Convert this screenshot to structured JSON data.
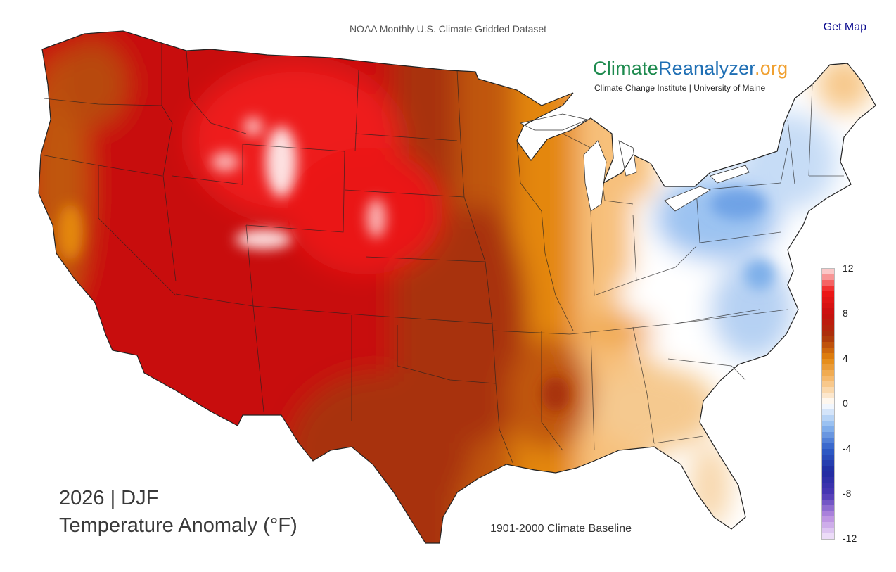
{
  "header": {
    "dataset_title": "NOAA Monthly U.S. Climate Gridded Dataset",
    "get_map_label": "Get Map"
  },
  "brand": {
    "name_part1": "Climate",
    "name_part2": "Reanalyzer",
    "name_part3": ".org",
    "subtitle": "Climate Change Institute | University of Maine",
    "colors": {
      "climate": "#1d8a4e",
      "reanalyzer": "#1f6fb4",
      "org": "#f0a030"
    }
  },
  "map": {
    "title_line1": "2026 | DJF",
    "title_line2": "Temperature Anomaly (°F)",
    "baseline_note": "1901-2000 Climate Baseline",
    "region": "Contiguous United States",
    "season": "DJF",
    "year": "2026"
  },
  "legend": {
    "units": "°F",
    "min": -12,
    "max": 12,
    "tick_labels": [
      "12",
      "8",
      "4",
      "0",
      "-4",
      "-8",
      "-12"
    ],
    "tick_values": [
      12,
      8,
      4,
      0,
      -4,
      -8,
      -12
    ],
    "color_stops": [
      {
        "value": -12,
        "color": "#f3e8fb"
      },
      {
        "value": -10,
        "color": "#b78ae0"
      },
      {
        "value": -8,
        "color": "#4a36b4"
      },
      {
        "value": -6,
        "color": "#1f2aa0"
      },
      {
        "value": -4,
        "color": "#2f5ec8"
      },
      {
        "value": -2,
        "color": "#8cb8ef"
      },
      {
        "value": 0,
        "color": "#ffffff"
      },
      {
        "value": 2,
        "color": "#f7c07a"
      },
      {
        "value": 4,
        "color": "#e4870f"
      },
      {
        "value": 6,
        "color": "#a8320a"
      },
      {
        "value": 8,
        "color": "#c80f0f"
      },
      {
        "value": 10,
        "color": "#f01818"
      },
      {
        "value": 12,
        "color": "#fde0e0"
      }
    ]
  }
}
